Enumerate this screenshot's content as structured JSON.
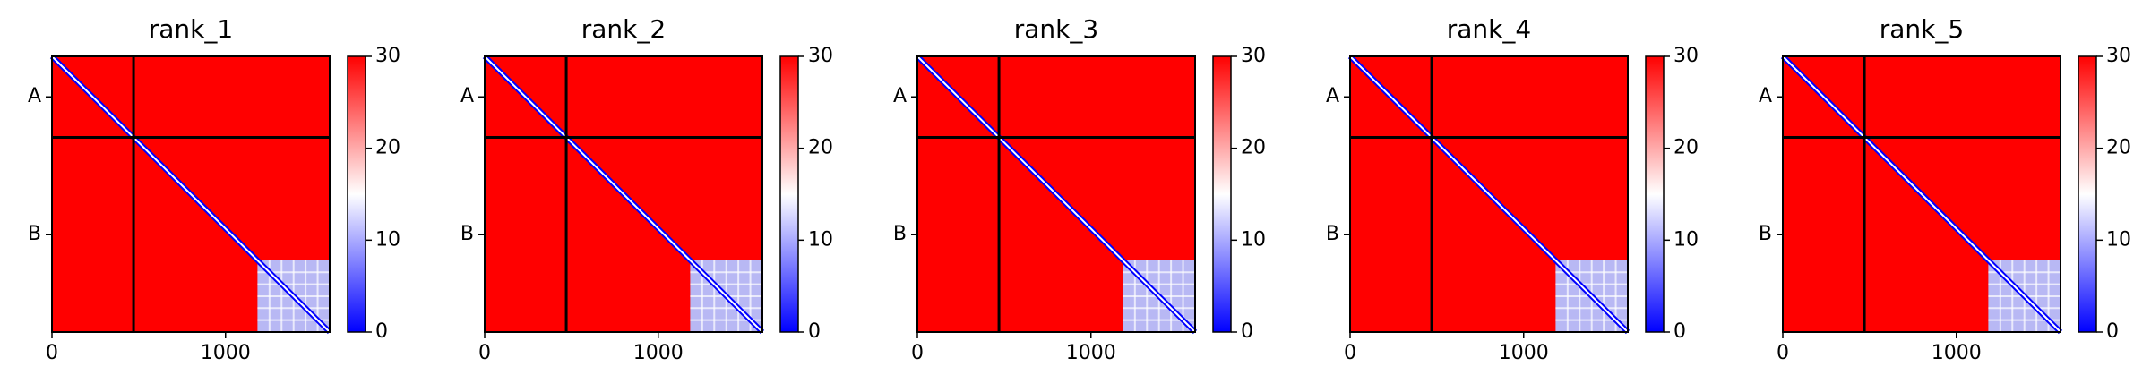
{
  "chart_data": [
    {
      "type": "heatmap",
      "title": "rank_1",
      "xlim": [
        0,
        1600
      ],
      "xticks": [
        0,
        1000
      ],
      "ylim": [
        1600,
        0
      ],
      "yticks": [
        {
          "value": 235,
          "label": "A"
        },
        {
          "value": 1035,
          "label": "B"
        }
      ],
      "chain_breaks": [
        470
      ],
      "clim": [
        0,
        30
      ],
      "cticks": [
        0,
        10,
        20,
        30
      ],
      "colormap": [
        "#0000ff",
        "#ffffff",
        "#ff0000"
      ]
    },
    {
      "type": "heatmap",
      "title": "rank_2",
      "xlim": [
        0,
        1600
      ],
      "xticks": [
        0,
        1000
      ],
      "ylim": [
        1600,
        0
      ],
      "yticks": [
        {
          "value": 235,
          "label": "A"
        },
        {
          "value": 1035,
          "label": "B"
        }
      ],
      "chain_breaks": [
        470
      ],
      "clim": [
        0,
        30
      ],
      "cticks": [
        0,
        10,
        20,
        30
      ],
      "colormap": [
        "#0000ff",
        "#ffffff",
        "#ff0000"
      ]
    },
    {
      "type": "heatmap",
      "title": "rank_3",
      "xlim": [
        0,
        1600
      ],
      "xticks": [
        0,
        1000
      ],
      "ylim": [
        1600,
        0
      ],
      "yticks": [
        {
          "value": 235,
          "label": "A"
        },
        {
          "value": 1035,
          "label": "B"
        }
      ],
      "chain_breaks": [
        470
      ],
      "clim": [
        0,
        30
      ],
      "cticks": [
        0,
        10,
        20,
        30
      ],
      "colormap": [
        "#0000ff",
        "#ffffff",
        "#ff0000"
      ]
    },
    {
      "type": "heatmap",
      "title": "rank_4",
      "xlim": [
        0,
        1600
      ],
      "xticks": [
        0,
        1000
      ],
      "ylim": [
        1600,
        0
      ],
      "yticks": [
        {
          "value": 235,
          "label": "A"
        },
        {
          "value": 1035,
          "label": "B"
        }
      ],
      "chain_breaks": [
        470
      ],
      "clim": [
        0,
        30
      ],
      "cticks": [
        0,
        10,
        20,
        30
      ],
      "colormap": [
        "#0000ff",
        "#ffffff",
        "#ff0000"
      ]
    },
    {
      "type": "heatmap",
      "title": "rank_5",
      "xlim": [
        0,
        1600
      ],
      "xticks": [
        0,
        1000
      ],
      "ylim": [
        1600,
        0
      ],
      "yticks": [
        {
          "value": 235,
          "label": "A"
        },
        {
          "value": 1035,
          "label": "B"
        }
      ],
      "chain_breaks": [
        470
      ],
      "clim": [
        0,
        30
      ],
      "cticks": [
        0,
        10,
        20,
        30
      ],
      "colormap": [
        "#0000ff",
        "#ffffff",
        "#ff0000"
      ]
    }
  ]
}
